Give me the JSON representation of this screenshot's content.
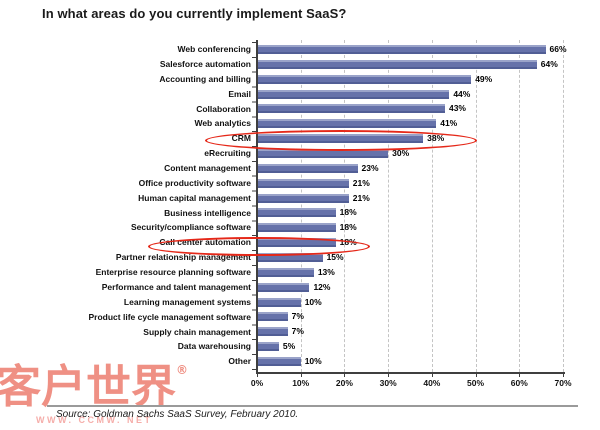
{
  "title": "In what areas do you currently implement SaaS?",
  "source": "Source: Goldman Sachs SaaS Survey, February 2010.",
  "watermark": {
    "text": "客户世界",
    "registered": "®",
    "subtext": "WWW. CCMW. NET",
    "color": "#E85C4A"
  },
  "chart_data": {
    "type": "bar",
    "orientation": "horizontal",
    "title": "In what areas do you currently implement SaaS?",
    "xlabel": "",
    "ylabel": "",
    "xlim": [
      0,
      70
    ],
    "x_ticks": [
      "0%",
      "10%",
      "20%",
      "30%",
      "40%",
      "50%",
      "60%",
      "70%"
    ],
    "grid": "vertical-dashed",
    "legend": "none",
    "bar_color": "#6672AA",
    "categories": [
      "Web conferencing",
      "Salesforce automation",
      "Accounting and billing",
      "Email",
      "Collaboration",
      "Web analytics",
      "CRM",
      "eRecruiting",
      "Content management",
      "Office productivity software",
      "Human capital management",
      "Business intelligence",
      "Security/compliance software",
      "Call center automation",
      "Partner relationship management",
      "Enterprise resource planning software",
      "Performance and talent management",
      "Learning management systems",
      "Product life cycle management software",
      "Supply chain management",
      "Data warehousing",
      "Other"
    ],
    "values": [
      66,
      64,
      49,
      44,
      43,
      41,
      38,
      30,
      23,
      21,
      21,
      18,
      18,
      18,
      15,
      13,
      12,
      10,
      7,
      7,
      5,
      10
    ],
    "value_labels": [
      "66%",
      "64%",
      "49%",
      "44%",
      "43%",
      "41%",
      "38%",
      "30%",
      "23%",
      "21%",
      "21%",
      "18%",
      "18%",
      "18%",
      "15%",
      "13%",
      "12%",
      "10%",
      "7%",
      "7%",
      "5%",
      "10%"
    ],
    "annotations": [
      {
        "type": "ellipse",
        "category": "CRM",
        "color": "#E52819"
      },
      {
        "type": "ellipse",
        "category": "Call center automation",
        "color": "#E52819"
      }
    ]
  }
}
